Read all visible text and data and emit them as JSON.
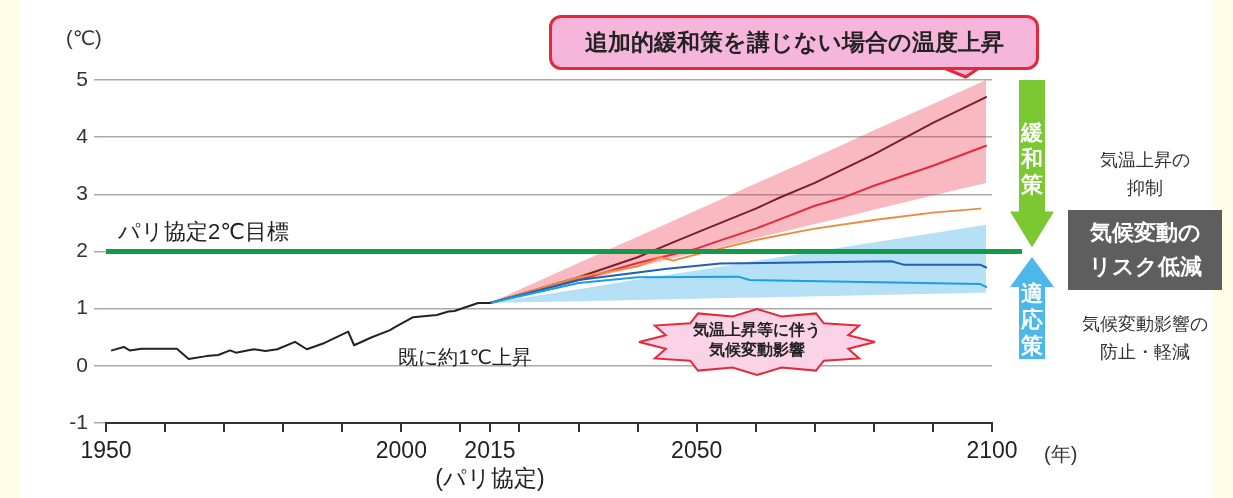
{
  "chart_data": {
    "type": "line",
    "xlabel": "(年)",
    "ylabel": "(℃)",
    "xlim": [
      1950,
      2100
    ],
    "xticks": [
      1950,
      {
        "value": 1960,
        "label": null
      },
      {
        "value": 1970,
        "label": null
      },
      {
        "value": 1980,
        "label": null
      },
      {
        "value": 1990,
        "label": null
      },
      2000,
      {
        "value": 2010,
        "label": null
      },
      {
        "value": 2015,
        "label": "2015\n(パリ協定)"
      },
      {
        "value": 2020,
        "label": null
      },
      {
        "value": 2030,
        "label": null
      },
      {
        "value": 2040,
        "label": null
      },
      2050,
      {
        "value": 2060,
        "label": null
      },
      {
        "value": 2070,
        "label": null
      },
      {
        "value": 2080,
        "label": null
      },
      {
        "value": 2090,
        "label": null
      },
      2100
    ],
    "ylim": [
      -1,
      5
    ],
    "yticks": [
      -1,
      0,
      1,
      2,
      3,
      4,
      5
    ],
    "grid": "y",
    "marker": "none",
    "line_style": "solid",
    "series": [
      {
        "color": "#222222",
        "x": [
          1951,
          1953,
          1954,
          1956,
          1962,
          1964,
          1967,
          1969,
          1971,
          1972,
          1975,
          1977,
          1979,
          1982,
          1984,
          1987,
          1991,
          1992,
          1995,
          1998,
          1999,
          2002,
          2006,
          2008,
          2009,
          2013,
          2015
        ],
        "values": [
          0.27,
          0.33,
          0.27,
          0.3,
          0.3,
          0.12,
          0.17,
          0.19,
          0.27,
          0.23,
          0.29,
          0.26,
          0.29,
          0.42,
          0.29,
          0.4,
          0.6,
          0.36,
          0.5,
          0.62,
          0.68,
          0.85,
          0.89,
          0.95,
          0.96,
          1.1,
          1.1
        ]
      },
      {
        "color": "#1aa0e0",
        "x": [
          2015,
          2030,
          2040,
          2057,
          2059,
          2098,
          2099
        ],
        "values": [
          1.1,
          1.45,
          1.55,
          1.56,
          1.5,
          1.43,
          1.38
        ],
        "lower": [
          1.1,
          1.13,
          1.15,
          1.19,
          1.19,
          1.28,
          1.28
        ],
        "upper": [
          1.1,
          1.34,
          1.51,
          1.78,
          1.82,
          2.45,
          2.47
        ]
      },
      {
        "color": "#1f5fb5",
        "x": [
          2015,
          2030,
          2045,
          2054,
          2083,
          2085,
          2098,
          2099
        ],
        "values": [
          1.1,
          1.5,
          1.7,
          1.79,
          1.83,
          1.77,
          1.77,
          1.72
        ]
      },
      {
        "color": "#f08a3a",
        "x": [
          2015,
          2030,
          2040,
          2044,
          2046,
          2050,
          2060,
          2070,
          2080,
          2090,
          2098
        ],
        "values": [
          1.1,
          1.55,
          1.74,
          1.9,
          1.84,
          1.95,
          2.2,
          2.4,
          2.55,
          2.68,
          2.75
        ]
      },
      {
        "color": "#e8283c",
        "x": [
          2015,
          2030,
          2040,
          2050,
          2053,
          2060,
          2070,
          2075,
          2080,
          2090,
          2099
        ],
        "values": [
          1.1,
          1.5,
          1.8,
          2.05,
          2.16,
          2.4,
          2.8,
          2.95,
          3.15,
          3.5,
          3.85
        ],
        "lower": [
          1.1,
          1.48,
          1.73,
          1.98,
          2.05,
          2.23,
          2.48,
          2.6,
          2.73,
          2.98,
          3.2
        ],
        "upper": [
          1.1,
          1.8,
          2.26,
          2.72,
          2.86,
          3.19,
          3.65,
          3.88,
          4.12,
          4.58,
          5.0
        ]
      },
      {
        "color": "#7a1f2b",
        "x": [
          2015,
          2020,
          2030,
          2040,
          2046,
          2050,
          2060,
          2064,
          2070,
          2080,
          2090,
          2097,
          2099
        ],
        "values": [
          1.1,
          1.25,
          1.55,
          1.9,
          2.16,
          2.33,
          2.75,
          2.94,
          3.2,
          3.7,
          4.25,
          4.6,
          4.7
        ]
      }
    ],
    "ref_lines": [
      {
        "axis": "y",
        "value": 2,
        "label": "パリ協定2℃目標",
        "color": "#14994a"
      }
    ],
    "annotations": [
      {
        "text": "追加的緩和策を講じない場合の温度上昇",
        "x": 2097,
        "y": 4.7
      },
      "既に約1℃上昇",
      "気温上昇等に伴う気候変動影響",
      "緩和策",
      "適応策",
      "気温上昇の抑制",
      "気候変動のリスク低減",
      "気候変動影響の防止・軽減"
    ]
  }
}
